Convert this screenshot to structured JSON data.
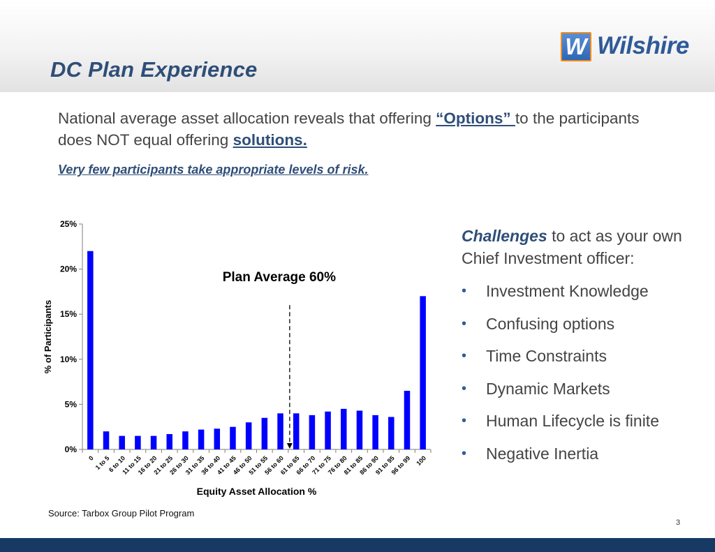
{
  "header": {
    "title": "DC Plan Experience",
    "logo": {
      "mark": "W",
      "word": "Wilshire",
      "mark_color": "#2f66b4",
      "mark_border": "#f08a1d",
      "word_color": "#2f5a99"
    }
  },
  "intro": {
    "part1": "National average asset allocation reveals that offering ",
    "options": "“Options” ",
    "part2": "to the participants does NOT equal offering ",
    "solutions": "solutions."
  },
  "risk_line": "Very few participants take appropriate levels of risk.",
  "chart_data": {
    "type": "bar",
    "title": "",
    "xlabel": "Equity Asset Allocation %",
    "ylabel": "% of Participants",
    "ylim": [
      0,
      25
    ],
    "yticks": [
      0,
      5,
      10,
      15,
      20,
      25
    ],
    "ytick_labels": [
      "0%",
      "5%",
      "10%",
      "15%",
      "20%",
      "25%"
    ],
    "bar_color": "#0000ff",
    "categories": [
      "0",
      "1 to 5",
      "6 to 10",
      "11 to 15",
      "16 to 20",
      "21 to 25",
      "26 to 30",
      "31 to 35",
      "36 to 40",
      "41 to 45",
      "46 to 50",
      "51 to 55",
      "56 to 60",
      "61 to 65",
      "66 to 70",
      "71 to 75",
      "76 to 80",
      "81 to 85",
      "86 to 90",
      "91 to 95",
      "96 to 99",
      "100"
    ],
    "values": [
      22.0,
      2.0,
      1.5,
      1.5,
      1.5,
      1.7,
      2.0,
      2.2,
      2.3,
      2.5,
      3.0,
      3.5,
      4.0,
      4.0,
      3.8,
      4.2,
      4.5,
      4.3,
      3.8,
      3.6,
      6.5,
      17.0
    ],
    "annotation": {
      "text": "Plan Average  60%",
      "category_boundary": "56 to 60 | 61 to 65",
      "line_style": "dashed",
      "line_top_value": 16
    },
    "grid": false,
    "legend": "none"
  },
  "challenges": {
    "heading_bold": "Challenges",
    "heading_rest": " to act as your own Chief Investment officer:",
    "items": [
      "Investment Knowledge",
      "Confusing options",
      "Time Constraints",
      "Dynamic Markets",
      "Human Lifecycle is finite",
      "Negative Inertia"
    ]
  },
  "source": "Source:  Tarbox Group Pilot Program",
  "page_number": "3"
}
